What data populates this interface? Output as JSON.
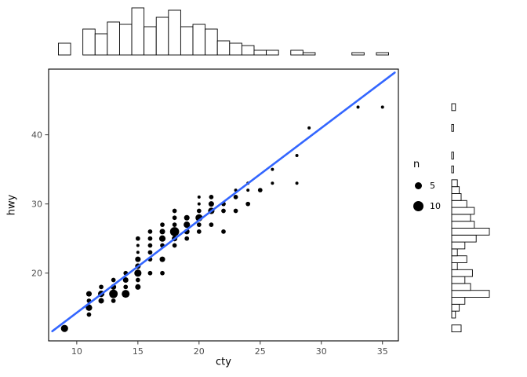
{
  "chart_data": {
    "type": "scatter",
    "description": "Scatter plot of city vs highway fuel economy with point size encoding count, a blue linear fit line, and marginal histograms on top (cty) and right (hwy).",
    "xlabel": "cty",
    "ylabel": "hwy",
    "x_ticks": [
      10,
      15,
      20,
      25,
      30,
      35
    ],
    "y_ticks": [
      20,
      30,
      40
    ],
    "xlim": [
      7.7,
      36.3
    ],
    "ylim": [
      10.2,
      49.5
    ],
    "legend": {
      "title": "n",
      "entries": [
        {
          "label": "5",
          "n": 5
        },
        {
          "label": "10",
          "n": 10
        }
      ]
    },
    "colors": {
      "point": "#000000",
      "line": "#3366FF",
      "bar_fill": "#ffffff",
      "bar_stroke": "#000000",
      "panel_border": "#000000",
      "tick_label": "#4d4d4d"
    },
    "line": {
      "x1": 8.0,
      "y1": 11.6,
      "x2": 36.0,
      "y2": 49.0
    },
    "points": [
      [
        9,
        12,
        5
      ],
      [
        11,
        14,
        2
      ],
      [
        11,
        15,
        4
      ],
      [
        11,
        16,
        2
      ],
      [
        11,
        17,
        3
      ],
      [
        12,
        16,
        3
      ],
      [
        12,
        17,
        4
      ],
      [
        12,
        18,
        2
      ],
      [
        13,
        16,
        2
      ],
      [
        13,
        17,
        7
      ],
      [
        13,
        18,
        3
      ],
      [
        13,
        19,
        2
      ],
      [
        14,
        17,
        6
      ],
      [
        14,
        18,
        2
      ],
      [
        14,
        19,
        3
      ],
      [
        14,
        20,
        2
      ],
      [
        15,
        18,
        3
      ],
      [
        15,
        19,
        2
      ],
      [
        15,
        20,
        5
      ],
      [
        15,
        21,
        3
      ],
      [
        15,
        22,
        3
      ],
      [
        15,
        23,
        1
      ],
      [
        15,
        24,
        1
      ],
      [
        15,
        25,
        2
      ],
      [
        16,
        20,
        2
      ],
      [
        16,
        22,
        2
      ],
      [
        16,
        23,
        2
      ],
      [
        16,
        24,
        2
      ],
      [
        16,
        25,
        2
      ],
      [
        16,
        26,
        2
      ],
      [
        17,
        20,
        2
      ],
      [
        17,
        22,
        3
      ],
      [
        17,
        24,
        2
      ],
      [
        17,
        25,
        4
      ],
      [
        17,
        26,
        3
      ],
      [
        17,
        27,
        2
      ],
      [
        18,
        24,
        2
      ],
      [
        18,
        25,
        3
      ],
      [
        18,
        26,
        8
      ],
      [
        18,
        27,
        2
      ],
      [
        18,
        28,
        2
      ],
      [
        18,
        29,
        2
      ],
      [
        19,
        25,
        2
      ],
      [
        19,
        26,
        3
      ],
      [
        19,
        27,
        4
      ],
      [
        19,
        28,
        3
      ],
      [
        20,
        26,
        2
      ],
      [
        20,
        27,
        2
      ],
      [
        20,
        28,
        5
      ],
      [
        20,
        29,
        2
      ],
      [
        20,
        30,
        1
      ],
      [
        20,
        31,
        1
      ],
      [
        21,
        27,
        2
      ],
      [
        21,
        29,
        4
      ],
      [
        21,
        30,
        3
      ],
      [
        21,
        31,
        2
      ],
      [
        22,
        26,
        2
      ],
      [
        22,
        29,
        2
      ],
      [
        22,
        30,
        2
      ],
      [
        23,
        29,
        2
      ],
      [
        23,
        31,
        2
      ],
      [
        23,
        32,
        1
      ],
      [
        24,
        30,
        2
      ],
      [
        24,
        32,
        1
      ],
      [
        24,
        33,
        1
      ],
      [
        25,
        32,
        2
      ],
      [
        26,
        33,
        1
      ],
      [
        26,
        35,
        1
      ],
      [
        28,
        33,
        1
      ],
      [
        28,
        37,
        1
      ],
      [
        29,
        41,
        1
      ],
      [
        33,
        44,
        1
      ],
      [
        35,
        44,
        1
      ]
    ],
    "marginals": {
      "bin_width": 1,
      "note_top": "histogram of cty counts",
      "note_right": "histogram of hwy counts"
    },
    "size_scale": {
      "r_at_n1": 2.0,
      "r_at_n10": 6.5
    }
  }
}
